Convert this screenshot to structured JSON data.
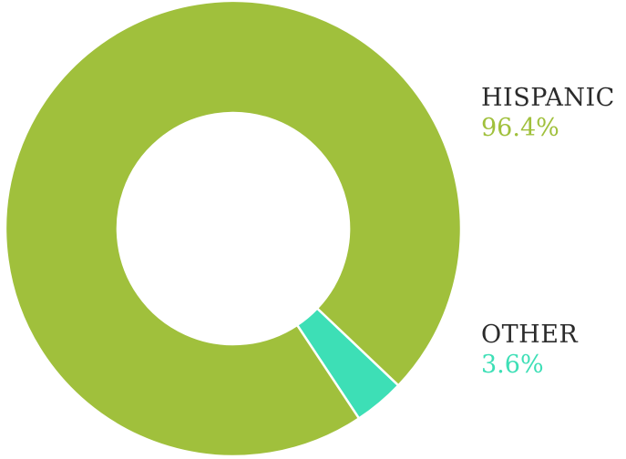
{
  "chart_data": {
    "type": "pie",
    "donut": true,
    "title": "",
    "categories": [
      "HISPANIC",
      "OTHER"
    ],
    "values": [
      96.4,
      3.6
    ],
    "value_labels": [
      "96.4%",
      "3.6%"
    ],
    "colors": [
      "#a0c03c",
      "#3ddfb6"
    ],
    "legend_placement": "right"
  }
}
